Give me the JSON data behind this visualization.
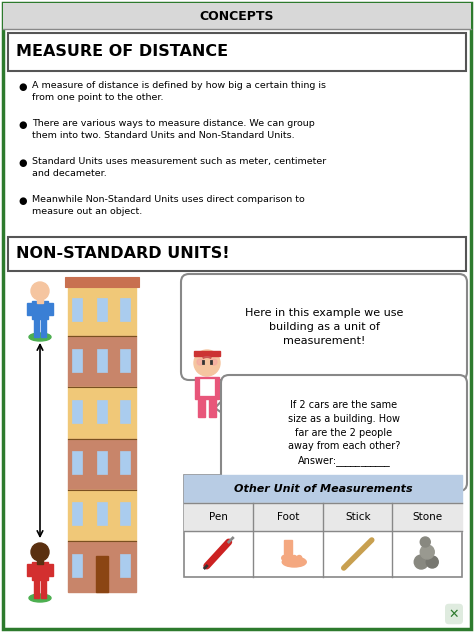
{
  "title": "CONCEPTS",
  "section1_title": "MEASURE OF DISTANCE",
  "bullets": [
    "A measure of distance is defined by how big a certain thing is\nfrom one point to the other.",
    "There are various ways to measure distance. We can group\nthem into two. Standard Units and Non-Standard Units.",
    "Standard Units uses measurement such as meter, centimeter\nand decameter.",
    "Meanwhile Non-Standard Units uses direct comparison to\nmeasure out an object."
  ],
  "section2_title": "NON-STANDARD UNITS!",
  "speech_bubble1": "Here in this example we use\nbuilding as a unit of\nmeasurement!",
  "speech_bubble2": "If 2 cars are the same\nsize as a building. How\nfar are the 2 people\naway from each other?\nAnswer:___________",
  "table_title": "Other Unit of Measurements",
  "table_cols": [
    "Pen",
    "Foot",
    "Stick",
    "Stone"
  ],
  "bg_color": "#ffffff",
  "border_color": "#2d7a2d",
  "concepts_bg": "#d8d8d8",
  "table_header_bg": "#b8cce4",
  "table_row_bg": "#e8e8e8"
}
